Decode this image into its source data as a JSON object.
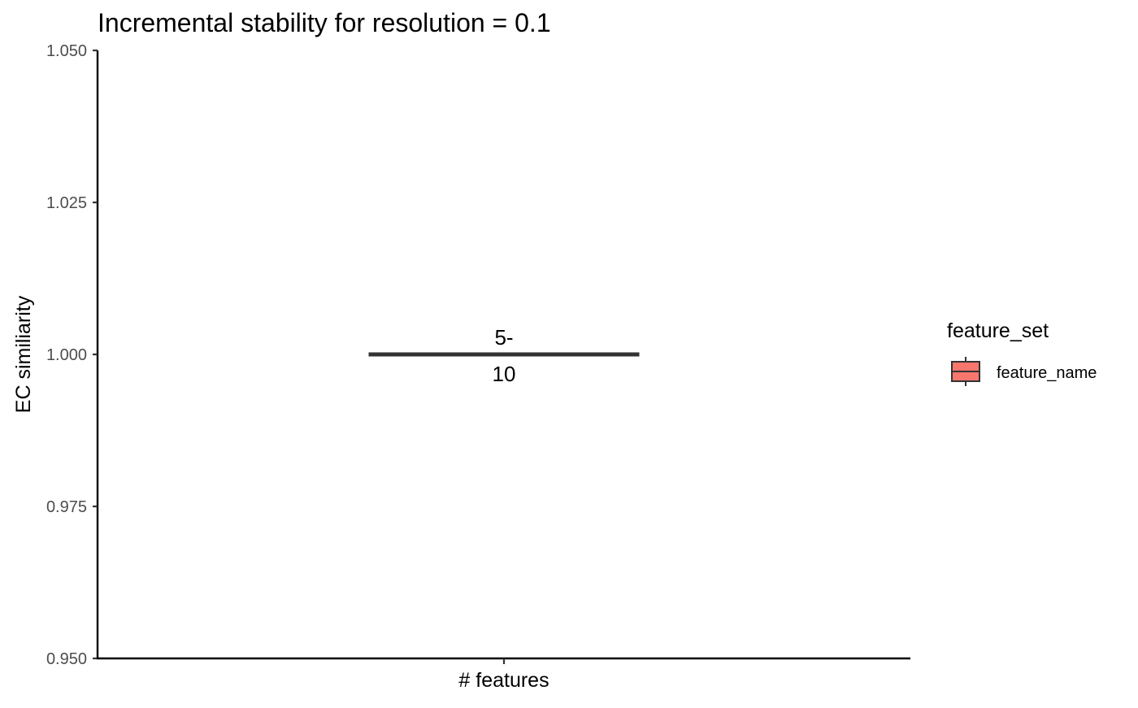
{
  "chart_data": {
    "type": "box",
    "title": "Incremental stability for resolution = 0.1",
    "xlabel": "",
    "ylabel": "EC similiarity",
    "categories": [
      "# features"
    ],
    "y_ticks": [
      "0.950",
      "0.975",
      "1.000",
      "1.025",
      "1.050"
    ],
    "ylim": [
      0.95,
      1.05
    ],
    "grid": false,
    "series": [
      {
        "name": "feature_name",
        "color": "#F8766D",
        "boxes": [
          {
            "category": "# features",
            "min": 1.0,
            "q1": 1.0,
            "median": 1.0,
            "q3": 1.0,
            "max": 1.0,
            "label_line1": "5-",
            "label_line2": "10"
          }
        ]
      }
    ],
    "legend": {
      "title": "feature_set",
      "position": "right",
      "entries": [
        "feature_name"
      ]
    }
  }
}
